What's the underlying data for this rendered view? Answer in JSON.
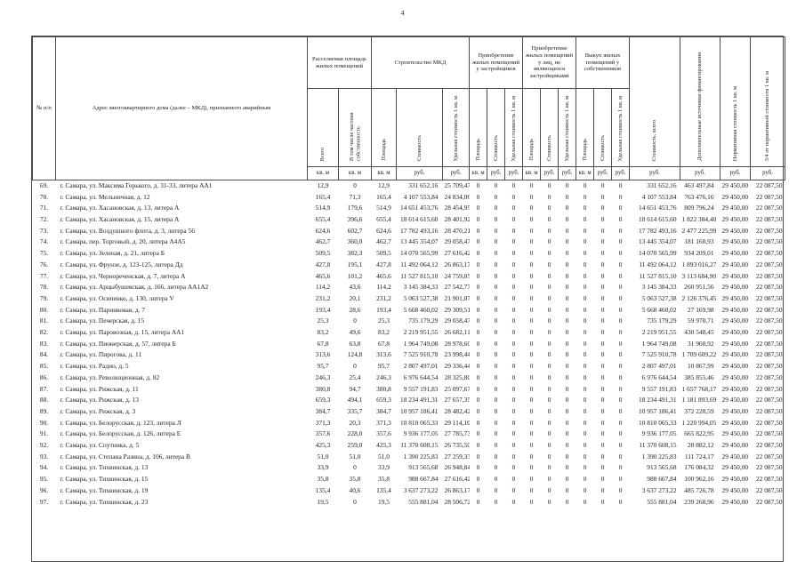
{
  "page": {
    "number": "4"
  },
  "colors": {
    "background": "#ffffff",
    "text": "#1c1c1c",
    "border": "#4d4d4d"
  },
  "table": {
    "zero_value": "0",
    "headers": {
      "num": "№ п/п",
      "address": "Адрес многоквартирного дома (далее – МКД), признанного аварийным",
      "groups": [
        {
          "label": "Расселяемая площадь жилых помещений",
          "cols": [
            "Всего",
            "В том числе частная собственность"
          ],
          "units": [
            "кв. м",
            "кв. м"
          ]
        },
        {
          "label": "Строительство МКД",
          "cols": [
            "Площадь",
            "Стоимость",
            "Удельная стоимость 1 кв. м"
          ],
          "units": [
            "кв. м",
            "руб.",
            "руб."
          ]
        },
        {
          "label": "Приобретение жилых помещений у застройщиков",
          "cols": [
            "Площадь",
            "Стоимость",
            "Удельная стоимость 1 кв. м"
          ],
          "units": [
            "кв. м",
            "руб.",
            "руб."
          ]
        },
        {
          "label": "Приобретение жилых помещений у лиц, не являющихся застройщиками",
          "cols": [
            "Площадь",
            "Стоимость",
            "Удельная стоимость 1 кв. м"
          ],
          "units": [
            "кв. м",
            "руб.",
            "руб."
          ]
        },
        {
          "label": "Выкуп жилых помещений у собственников",
          "cols": [
            "Площадь",
            "Стоимость",
            "Удельная стоимость 1 кв. м"
          ],
          "units": [
            "кв. м",
            "руб.",
            "руб."
          ]
        }
      ],
      "totals": [
        {
          "label": "Стоимость, всего",
          "unit": "руб."
        },
        {
          "label": "Дополнительные источники финансирования",
          "unit": "руб."
        },
        {
          "label": "Нормативная стоимость 1 кв. м",
          "unit": "руб."
        },
        {
          "label": "3/4 от нормативной стоимости 1 кв. м",
          "unit": "руб."
        }
      ]
    },
    "rows": [
      {
        "n": "69.",
        "a": "г. Самара, ул. Максима Горького, д. 31-33, литера АА1",
        "v": [
          "12,9",
          "0",
          "12,9",
          "331 652,16",
          "25 709,47"
        ],
        "t": [
          "331 652,16",
          "463 497,84",
          "29 450,00",
          "22 087,50"
        ]
      },
      {
        "n": "70.",
        "a": "г. Самара, ул. Мельничная, д. 12",
        "v": [
          "165,4",
          "71,3",
          "165,4",
          "4 107 553,84",
          "24 834,06"
        ],
        "t": [
          "4 107 553,84",
          "763 476,16",
          "29 450,00",
          "22 087,50"
        ]
      },
      {
        "n": "71.",
        "a": "г. Самара, ул. Хасановская, д. 13, литера А",
        "v": [
          "514,9",
          "179,6",
          "514,9",
          "14 651 453,76",
          "28 454,95"
        ],
        "t": [
          "14 651 453,76",
          "809 796,24",
          "29 450,00",
          "22 087,50"
        ]
      },
      {
        "n": "72.",
        "a": "г. Самара, ул. Хасановская, д. 15, литера А",
        "v": [
          "655,4",
          "396,6",
          "655,4",
          "18 614 615,60",
          "28 401,92"
        ],
        "t": [
          "18 614 615,60",
          "1 822 384,40",
          "29 450,00",
          "22 087,50"
        ]
      },
      {
        "n": "73.",
        "a": "г. Самара, ул. Воздушного флота, д. 3, литера 56",
        "v": [
          "624,6",
          "602,7",
          "624,6",
          "17 782 493,16",
          "28 470,21"
        ],
        "t": [
          "17 782 493,16",
          "2 477 225,99",
          "29 450,00",
          "22 087,50"
        ]
      },
      {
        "n": "74.",
        "a": "г. Самара, пер. Торговый, д. 20, литера А4А5",
        "v": [
          "462,7",
          "360,0",
          "462,7",
          "13 445 354,07",
          "29 058,47"
        ],
        "t": [
          "13 445 354,07",
          "181 160,93",
          "29 450,00",
          "22 087,50"
        ]
      },
      {
        "n": "75.",
        "a": "г. Самара, ул. Зеленая, д. 21, литера Б",
        "v": [
          "509,5",
          "382,3",
          "509,5",
          "14 070 565,99",
          "27 616,42"
        ],
        "t": [
          "14 070 565,99",
          "934 209,01",
          "29 450,00",
          "22 087,50"
        ]
      },
      {
        "n": "76.",
        "a": "г. Самара, ул. Фрунзе, д. 123-125, литера Дд",
        "v": [
          "427,8",
          "195,1",
          "427,8",
          "11 492 064,12",
          "26 863,17"
        ],
        "t": [
          "11 492 064,12",
          "1 893 016,27",
          "29 450,00",
          "22 087,50"
        ]
      },
      {
        "n": "77.",
        "a": "г. Самара, ул. Чернореченская, д. 7, литера А",
        "v": [
          "465,6",
          "101,2",
          "465,6",
          "11 527 815,10",
          "24 759,05"
        ],
        "t": [
          "11 527 815,10",
          "3 113 684,90",
          "29 450,00",
          "22 087,50"
        ]
      },
      {
        "n": "78.",
        "a": "г. Самара, ул. Арцыбушевская, д. 166, литера АА1А2",
        "v": [
          "114,2",
          "43,6",
          "114,2",
          "3 145 384,33",
          "27 542,77"
        ],
        "t": [
          "3 145 384,33",
          "260 951,56",
          "29 450,00",
          "22 087,50"
        ]
      },
      {
        "n": "79.",
        "a": "г. Самара, ул. Осипенко, д. 130, литера V",
        "v": [
          "231,2",
          "20,1",
          "231,2",
          "5 063 527,38",
          "21 901,07"
        ],
        "t": [
          "5 063 527,38",
          "2 126 376,45",
          "29 450,00",
          "22 087,50"
        ]
      },
      {
        "n": "80.",
        "a": "г. Самара, ул. Парниковая, д. 7",
        "v": [
          "193,4",
          "28,6",
          "193,4",
          "5 668 460,02",
          "29 309,51"
        ],
        "t": [
          "5 668 460,02",
          "27 169,98",
          "29 450,00",
          "22 087,50"
        ]
      },
      {
        "n": "81.",
        "a": "г. Самара, ул. Печерская, д. 15",
        "v": [
          "25,3",
          "0",
          "25,3",
          "735 179,29",
          "29 058,47"
        ],
        "t": [
          "735 179,29",
          "59 970,71",
          "29 450,00",
          "22 087,50"
        ]
      },
      {
        "n": "82.",
        "a": "г. Самара, ул. Паровозная, д. 15, литера АА1",
        "v": [
          "83,2",
          "49,6",
          "83,2",
          "2 219 951,55",
          "26 682,11"
        ],
        "t": [
          "2 219 951,55",
          "430 548,45",
          "29 450,00",
          "22 087,50"
        ]
      },
      {
        "n": "83.",
        "a": "г. Самара, ул. Пионерская, д. 57, литера Б",
        "v": [
          "67,8",
          "63,8",
          "67,8",
          "1 964 749,08",
          "28 978,60"
        ],
        "t": [
          "1 964 749,08",
          "31 960,92",
          "29 450,00",
          "22 087,50"
        ]
      },
      {
        "n": "84.",
        "a": "г. Самара, ул. Пирогова, д. 11",
        "v": [
          "313,6",
          "124,8",
          "313,6",
          "7 525 910,78",
          "23 998,44"
        ],
        "t": [
          "7 525 910,78",
          "1 709 609,22",
          "29 450,00",
          "22 087,50"
        ]
      },
      {
        "n": "85.",
        "a": "г. Самара, ул. Радио, д. 5",
        "v": [
          "95,7",
          "0",
          "95,7",
          "2 807 497,01",
          "29 336,44"
        ],
        "t": [
          "2 807 497,01",
          "10 867,99",
          "29 450,00",
          "22 087,50"
        ]
      },
      {
        "n": "86.",
        "a": "г. Самара, ул. Революционная, д. 82",
        "v": [
          "246,3",
          "25,4",
          "246,3",
          "6 976 644,54",
          "28 325,80"
        ],
        "t": [
          "6 976 644,54",
          "385 855,46",
          "29 450,00",
          "22 087,50"
        ]
      },
      {
        "n": "87.",
        "a": "г. Самара, ул. Рижская, д. 11",
        "v": [
          "380,8",
          "94,7",
          "380,8",
          "9 557 191,83",
          "25 097,67"
        ],
        "t": [
          "9 557 191,83",
          "1 657 768,17",
          "29 450,00",
          "22 087,50"
        ]
      },
      {
        "n": "88.",
        "a": "г. Самара, ул. Рижская, д. 13",
        "v": [
          "659,3",
          "494,1",
          "659,3",
          "18 234 491,31",
          "27 657,35"
        ],
        "t": [
          "18 234 491,31",
          "1 181 893,69",
          "29 450,00",
          "22 087,50"
        ]
      },
      {
        "n": "89.",
        "a": "г. Самара, ул. Рижская, д. 3",
        "v": [
          "384,7",
          "335,7",
          "384,7",
          "10 957 186,41",
          "28 482,42"
        ],
        "t": [
          "10 957 186,41",
          "372 228,59",
          "29 450,00",
          "22 087,50"
        ]
      },
      {
        "n": "90.",
        "a": "г. Самара, ул. Белорусская, д. 123, литера Л",
        "v": [
          "371,3",
          "20,3",
          "371,3",
          "10 810 065,33",
          "29 114,10"
        ],
        "t": [
          "10 810 065,33",
          "1 220 994,05",
          "29 450,00",
          "22 087,50"
        ]
      },
      {
        "n": "91.",
        "a": "г. Самара, ул. Белорусская, д. 126, литера Е",
        "v": [
          "357,6",
          "228,0",
          "357,6",
          "9 936 177,05",
          "27 785,73"
        ],
        "t": [
          "9 936 177,05",
          "665 822,95",
          "29 450,00",
          "22 087,50"
        ]
      },
      {
        "n": "92.",
        "a": "г. Самара, ул. Спутника, д. 5",
        "v": [
          "425,3",
          "259,0",
          "425,3",
          "11 370 608,15",
          "26 735,50"
        ],
        "t": [
          "11 370 608,15",
          "28 882,12",
          "29 450,00",
          "22 087,50"
        ]
      },
      {
        "n": "93.",
        "a": "г. Самара, ул. Степана Разина, д. 106, литера В",
        "v": [
          "51,0",
          "51,0",
          "51,0",
          "1 390 225,83",
          "27 259,33"
        ],
        "t": [
          "1 390 225,83",
          "111 724,17",
          "29 450,00",
          "22 087,50"
        ]
      },
      {
        "n": "94.",
        "a": "г. Самара, ул. Тихвинская, д. 13",
        "v": [
          "33,9",
          "0",
          "33,9",
          "913 565,68",
          "26 948,84"
        ],
        "t": [
          "913 565,68",
          "176 084,32",
          "29 450,00",
          "22 087,50"
        ]
      },
      {
        "n": "95.",
        "a": "г. Самара, ул. Тихвинская, д. 15",
        "v": [
          "35,8",
          "35,8",
          "35,8",
          "988 667,84",
          "27 616,42"
        ],
        "t": [
          "988 667,84",
          "100 962,16",
          "29 450,00",
          "22 087,50"
        ]
      },
      {
        "n": "96.",
        "a": "г. Самара, ул. Тихвинская, д. 19",
        "v": [
          "135,4",
          "40,6",
          "135,4",
          "3 637 273,22",
          "26 863,17"
        ],
        "t": [
          "3 637 273,22",
          "485 726,78",
          "29 450,00",
          "22 087,50"
        ]
      },
      {
        "n": "97.",
        "a": "г. Самара, ул. Тихвинская, д. 23",
        "v": [
          "19,5",
          "0",
          "19,5",
          "555 881,04",
          "28 506,72"
        ],
        "t": [
          "555 881,04",
          "239 268,96",
          "29 450,00",
          "22 087,50"
        ]
      }
    ]
  }
}
